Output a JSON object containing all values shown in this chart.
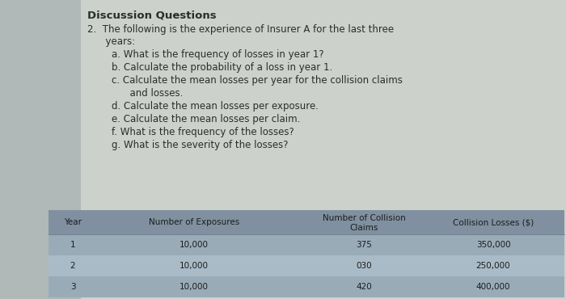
{
  "bg_left_color": "#b0b8b8",
  "bg_right_color": "#c8ceca",
  "content_bg": "#cdd1cc",
  "table_header_bg": "#8090a0",
  "table_row1_bg": "#9aabb8",
  "table_row2_bg": "#aabbc8",
  "table_row3_bg": "#9aabb8",
  "title": "Discussion Questions",
  "line2": "2.  The following is the experience of Insurer A for the last three",
  "line3": "      years:",
  "questions": [
    "a. What is the frequency of losses in year 1?",
    "b. Calculate the probability of a loss in year 1.",
    "c. Calculate the mean losses per year for the collision claims",
    "      and losses.",
    "d. Calculate the mean losses per exposure.",
    "e. Calculate the mean losses per claim.",
    "f. What is the frequency of the losses?",
    "g. What is the severity of the losses?"
  ],
  "table_columns": [
    "Year",
    "Number of Exposures",
    "Number of Collision\nClaims",
    "Collision Losses ($)"
  ],
  "table_data": [
    [
      "1",
      "10,000",
      "375",
      "350,000"
    ],
    [
      "2",
      "10,000",
      "030",
      "250,000"
    ],
    [
      "3",
      "10,000",
      "420",
      "400,000"
    ]
  ],
  "title_fontsize": 9.5,
  "body_fontsize": 8.5,
  "table_fontsize": 7.5,
  "text_color": "#2a2e2a",
  "table_text_color": "#1a1e1a"
}
